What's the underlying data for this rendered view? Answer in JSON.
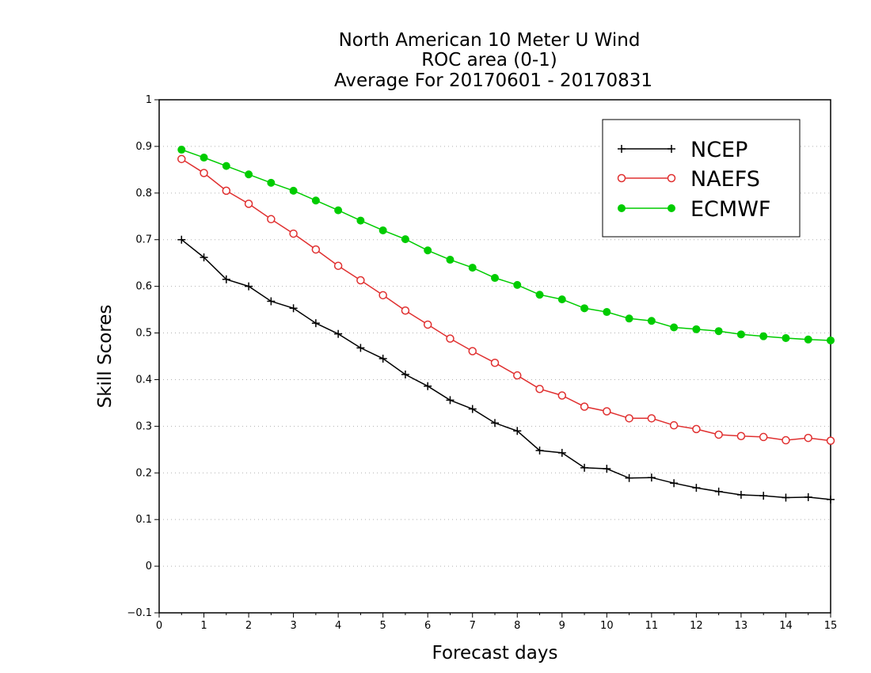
{
  "chart_data": {
    "type": "line",
    "title_lines": [
      "North American 10 Meter U Wind",
      "ROC area (0-1)",
      "Average For 20170601 - 20170831"
    ],
    "xlabel": "Forecast days",
    "ylabel": "Skill Scores",
    "xlim": [
      0,
      15
    ],
    "ylim": [
      -0.1,
      1
    ],
    "xticks": [
      "0",
      "1",
      "2",
      "3",
      "4",
      "5",
      "6",
      "7",
      "8",
      "9",
      "10",
      "11",
      "12",
      "13",
      "14",
      "15"
    ],
    "yticks": [
      "−0.1",
      "0",
      "0.1",
      "0.2",
      "0.3",
      "0.4",
      "0.5",
      "0.6",
      "0.7",
      "0.8",
      "0.9",
      "1"
    ],
    "ytick_values": [
      -0.1,
      0,
      0.1,
      0.2,
      0.3,
      0.4,
      0.5,
      0.6,
      0.7,
      0.8,
      0.9,
      1
    ],
    "grid": "horizontal dotted",
    "legend_position": "top-right",
    "x": [
      0.5,
      1,
      1.5,
      2,
      2.5,
      3,
      3.5,
      4,
      4.5,
      5,
      5.5,
      6,
      6.5,
      7,
      7.5,
      8,
      8.5,
      9,
      9.5,
      10,
      10.5,
      11,
      11.5,
      12,
      12.5,
      13,
      13.5,
      14,
      14.5,
      15
    ],
    "series": [
      {
        "name": "NCEP",
        "color": "#000000",
        "marker": "plus",
        "values": [
          0.7,
          0.662,
          0.615,
          0.6,
          0.568,
          0.553,
          0.521,
          0.498,
          0.468,
          0.445,
          0.411,
          0.386,
          0.356,
          0.337,
          0.307,
          0.29,
          0.248,
          0.243,
          0.211,
          0.209,
          0.189,
          0.19,
          0.178,
          0.168,
          0.16,
          0.153,
          0.151,
          0.147,
          0.148,
          0.143
        ]
      },
      {
        "name": "NAEFS",
        "color": "#e03030",
        "marker": "open-circle",
        "values": [
          0.873,
          0.843,
          0.805,
          0.777,
          0.744,
          0.713,
          0.679,
          0.644,
          0.613,
          0.581,
          0.548,
          0.518,
          0.488,
          0.461,
          0.436,
          0.409,
          0.38,
          0.366,
          0.342,
          0.332,
          0.317,
          0.317,
          0.302,
          0.294,
          0.282,
          0.279,
          0.277,
          0.27,
          0.275,
          0.269
        ]
      },
      {
        "name": "ECMWF",
        "color": "#00cc00",
        "marker": "filled-circle",
        "values": [
          0.893,
          0.876,
          0.858,
          0.84,
          0.822,
          0.805,
          0.784,
          0.763,
          0.741,
          0.72,
          0.701,
          0.677,
          0.657,
          0.64,
          0.618,
          0.603,
          0.582,
          0.572,
          0.553,
          0.545,
          0.531,
          0.526,
          0.512,
          0.508,
          0.504,
          0.497,
          0.493,
          0.489,
          0.486,
          0.484
        ]
      }
    ]
  }
}
